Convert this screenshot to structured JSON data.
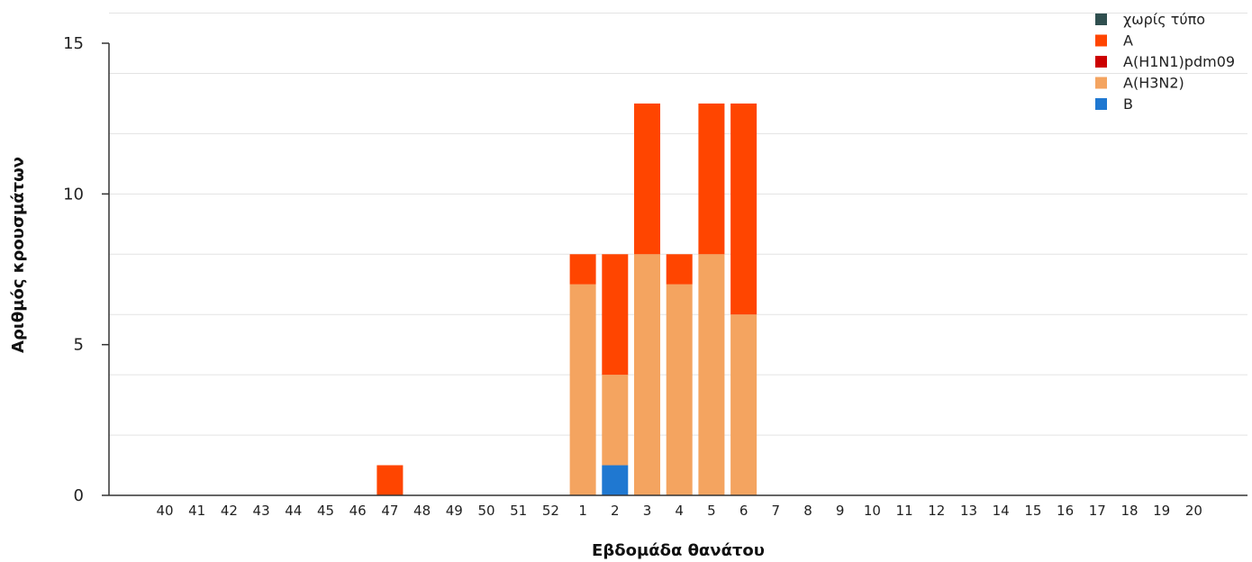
{
  "chart_data": {
    "type": "bar",
    "stacked": true,
    "xlabel": "Εβδομάδα θανάτου",
    "ylabel": "Αριθμός κρουσμάτων",
    "ylim": [
      0,
      15
    ],
    "yticks": [
      0,
      5,
      10,
      15
    ],
    "grid": true,
    "legend_position": "top-right",
    "categories": [
      "40",
      "41",
      "42",
      "43",
      "44",
      "45",
      "46",
      "47",
      "48",
      "49",
      "50",
      "51",
      "52",
      "1",
      "2",
      "3",
      "4",
      "5",
      "6",
      "7",
      "8",
      "9",
      "10",
      "11",
      "12",
      "13",
      "14",
      "15",
      "16",
      "17",
      "18",
      "19",
      "20"
    ],
    "series": [
      {
        "name": "χωρίς τύπο",
        "color": "#2f4f4f",
        "values": [
          0,
          0,
          0,
          0,
          0,
          0,
          0,
          0,
          0,
          0,
          0,
          0,
          0,
          0,
          0,
          0,
          0,
          0,
          0,
          0,
          0,
          0,
          0,
          0,
          0,
          0,
          0,
          0,
          0,
          0,
          0,
          0,
          0
        ]
      },
      {
        "name": "B",
        "color": "#1f78d1",
        "values": [
          0,
          0,
          0,
          0,
          0,
          0,
          0,
          0,
          0,
          0,
          0,
          0,
          0,
          0,
          1,
          0,
          0,
          0,
          0,
          0,
          0,
          0,
          0,
          0,
          0,
          0,
          0,
          0,
          0,
          0,
          0,
          0,
          0
        ]
      },
      {
        "name": "A(H3N2)",
        "color": "#f4a460",
        "values": [
          0,
          0,
          0,
          0,
          0,
          0,
          0,
          0,
          0,
          0,
          0,
          0,
          0,
          7,
          3,
          8,
          7,
          8,
          6,
          0,
          0,
          0,
          0,
          0,
          0,
          0,
          0,
          0,
          0,
          0,
          0,
          0,
          0
        ]
      },
      {
        "name": "A(H1N1)pdm09",
        "color": "#cc0000",
        "values": [
          0,
          0,
          0,
          0,
          0,
          0,
          0,
          0,
          0,
          0,
          0,
          0,
          0,
          0,
          0,
          0,
          0,
          0,
          0,
          0,
          0,
          0,
          0,
          0,
          0,
          0,
          0,
          0,
          0,
          0,
          0,
          0,
          0
        ]
      },
      {
        "name": "A",
        "color": "#ff4500",
        "values": [
          0,
          0,
          0,
          0,
          0,
          0,
          0,
          1,
          0,
          0,
          0,
          0,
          0,
          1,
          4,
          5,
          1,
          5,
          7,
          0,
          0,
          0,
          0,
          0,
          0,
          0,
          0,
          0,
          0,
          0,
          0,
          0,
          0
        ]
      }
    ],
    "legend_order": [
      "χωρίς τύπο",
      "A",
      "A(H1N1)pdm09",
      "A(H3N2)",
      "B"
    ]
  }
}
